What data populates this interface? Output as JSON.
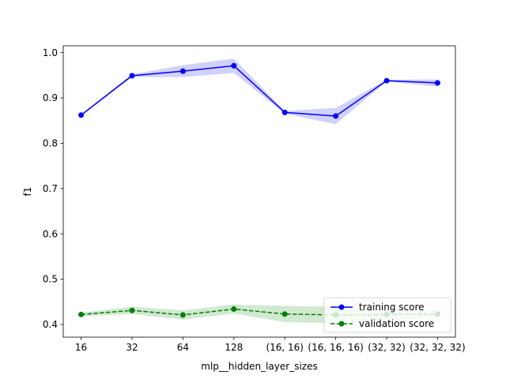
{
  "chart_data": {
    "type": "line",
    "xlabel": "mlp__hidden_layer_sizes",
    "ylabel": "f1",
    "categories": [
      "16",
      "32",
      "64",
      "128",
      "(16, 16)",
      "(16, 16, 16)",
      "(32, 32)",
      "(32, 32, 32)"
    ],
    "ylim": [
      0.372,
      1.015
    ],
    "yticks": [
      "0.4",
      "0.5",
      "0.6",
      "0.7",
      "0.8",
      "0.9",
      "1.0"
    ],
    "grid": false,
    "legend_position": "lower right",
    "series": [
      {
        "name": "training score",
        "color": "#0000ff",
        "band_color": "#0000ff",
        "style": "solid",
        "values": [
          0.862,
          0.949,
          0.959,
          0.971,
          0.868,
          0.86,
          0.938,
          0.933
        ],
        "lower": [
          0.86,
          0.946,
          0.946,
          0.955,
          0.865,
          0.842,
          0.936,
          0.925
        ],
        "upper": [
          0.864,
          0.952,
          0.972,
          0.987,
          0.871,
          0.878,
          0.94,
          0.941
        ]
      },
      {
        "name": "validation score",
        "color": "#008000",
        "band_color": "#008000",
        "style": "dashed",
        "values": [
          0.422,
          0.431,
          0.421,
          0.434,
          0.423,
          0.421,
          0.422,
          0.423
        ],
        "lower": [
          0.418,
          0.423,
          0.411,
          0.424,
          0.405,
          0.403,
          0.413,
          0.415
        ],
        "upper": [
          0.426,
          0.439,
          0.431,
          0.444,
          0.441,
          0.439,
          0.431,
          0.431
        ]
      }
    ]
  }
}
